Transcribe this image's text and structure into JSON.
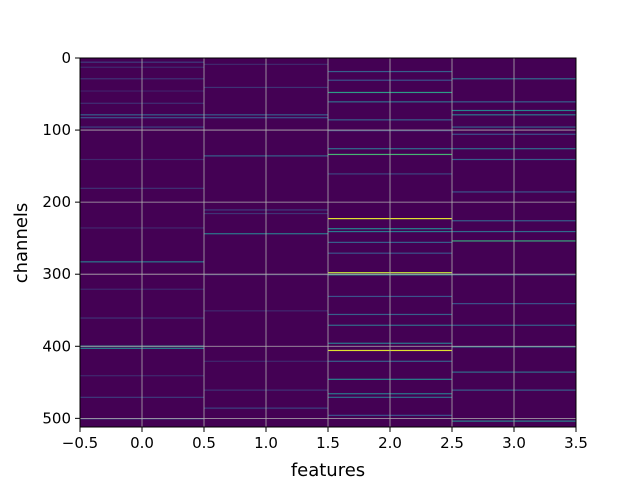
{
  "chart_data": {
    "type": "heatmap",
    "title": "",
    "xlabel": "features",
    "ylabel": "channels",
    "xlim": [
      -0.5,
      3.5
    ],
    "ylim": [
      512,
      0
    ],
    "y_inverted": true,
    "grid": true,
    "colormap": "viridis",
    "background_color": "#440154",
    "x_ticks": [
      -0.5,
      0.0,
      0.5,
      1.0,
      1.5,
      2.0,
      2.5,
      3.0,
      3.5
    ],
    "x_tick_labels": [
      "−0.5",
      "0.0",
      "0.5",
      "1.0",
      "1.5",
      "2.0",
      "2.5",
      "3.0",
      "3.5"
    ],
    "y_ticks": [
      0,
      100,
      200,
      300,
      400,
      500
    ],
    "y_tick_labels": [
      "0",
      "100",
      "200",
      "300",
      "400",
      "500"
    ],
    "columns": [
      {
        "feature": 0,
        "highlights": [
          {
            "channel": 5,
            "value": 0.18
          },
          {
            "channel": 12,
            "value": 0.12
          },
          {
            "channel": 28,
            "value": 0.15
          },
          {
            "channel": 45,
            "value": 0.1
          },
          {
            "channel": 62,
            "value": 0.14
          },
          {
            "channel": 78,
            "value": 0.3
          },
          {
            "channel": 82,
            "value": 0.25
          },
          {
            "channel": 95,
            "value": 0.2
          },
          {
            "channel": 140,
            "value": 0.12
          },
          {
            "channel": 180,
            "value": 0.15
          },
          {
            "channel": 235,
            "value": 0.12
          },
          {
            "channel": 282,
            "value": 0.4
          },
          {
            "channel": 320,
            "value": 0.12
          },
          {
            "channel": 360,
            "value": 0.15
          },
          {
            "channel": 399,
            "value": 0.5
          },
          {
            "channel": 402,
            "value": 0.45
          },
          {
            "channel": 440,
            "value": 0.12
          },
          {
            "channel": 470,
            "value": 0.18
          },
          {
            "channel": 500,
            "value": 0.15
          }
        ]
      },
      {
        "feature": 1,
        "highlights": [
          {
            "channel": 8,
            "value": 0.12
          },
          {
            "channel": 40,
            "value": 0.15
          },
          {
            "channel": 78,
            "value": 0.28
          },
          {
            "channel": 82,
            "value": 0.25
          },
          {
            "channel": 135,
            "value": 0.3
          },
          {
            "channel": 210,
            "value": 0.18
          },
          {
            "channel": 215,
            "value": 0.15
          },
          {
            "channel": 243,
            "value": 0.4
          },
          {
            "channel": 300,
            "value": 0.12
          },
          {
            "channel": 350,
            "value": 0.12
          },
          {
            "channel": 420,
            "value": 0.12
          },
          {
            "channel": 460,
            "value": 0.15
          },
          {
            "channel": 485,
            "value": 0.2
          }
        ]
      },
      {
        "feature": 2,
        "highlights": [
          {
            "channel": 18,
            "value": 0.3
          },
          {
            "channel": 30,
            "value": 0.25
          },
          {
            "channel": 47,
            "value": 0.55
          },
          {
            "channel": 60,
            "value": 0.35
          },
          {
            "channel": 85,
            "value": 0.3
          },
          {
            "channel": 100,
            "value": 0.2
          },
          {
            "channel": 125,
            "value": 0.35
          },
          {
            "channel": 133,
            "value": 0.65
          },
          {
            "channel": 160,
            "value": 0.2
          },
          {
            "channel": 222,
            "value": 0.95
          },
          {
            "channel": 236,
            "value": 0.45
          },
          {
            "channel": 240,
            "value": 0.4
          },
          {
            "channel": 255,
            "value": 0.3
          },
          {
            "channel": 270,
            "value": 0.25
          },
          {
            "channel": 297,
            "value": 0.9
          },
          {
            "channel": 300,
            "value": 0.5
          },
          {
            "channel": 330,
            "value": 0.25
          },
          {
            "channel": 355,
            "value": 0.3
          },
          {
            "channel": 370,
            "value": 0.35
          },
          {
            "channel": 395,
            "value": 0.4
          },
          {
            "channel": 405,
            "value": 0.95
          },
          {
            "channel": 420,
            "value": 0.3
          },
          {
            "channel": 445,
            "value": 0.45
          },
          {
            "channel": 465,
            "value": 0.4
          },
          {
            "channel": 470,
            "value": 0.35
          },
          {
            "channel": 495,
            "value": 0.25
          }
        ]
      },
      {
        "feature": 3,
        "highlights": [
          {
            "channel": 28,
            "value": 0.35
          },
          {
            "channel": 60,
            "value": 0.3
          },
          {
            "channel": 72,
            "value": 0.45
          },
          {
            "channel": 78,
            "value": 0.4
          },
          {
            "channel": 95,
            "value": 0.3
          },
          {
            "channel": 105,
            "value": 0.25
          },
          {
            "channel": 125,
            "value": 0.35
          },
          {
            "channel": 140,
            "value": 0.3
          },
          {
            "channel": 185,
            "value": 0.25
          },
          {
            "channel": 225,
            "value": 0.3
          },
          {
            "channel": 240,
            "value": 0.35
          },
          {
            "channel": 253,
            "value": 0.6
          },
          {
            "channel": 300,
            "value": 0.3
          },
          {
            "channel": 340,
            "value": 0.25
          },
          {
            "channel": 370,
            "value": 0.3
          },
          {
            "channel": 400,
            "value": 0.4
          },
          {
            "channel": 435,
            "value": 0.35
          },
          {
            "channel": 460,
            "value": 0.3
          },
          {
            "channel": 503,
            "value": 0.45
          }
        ]
      }
    ]
  }
}
